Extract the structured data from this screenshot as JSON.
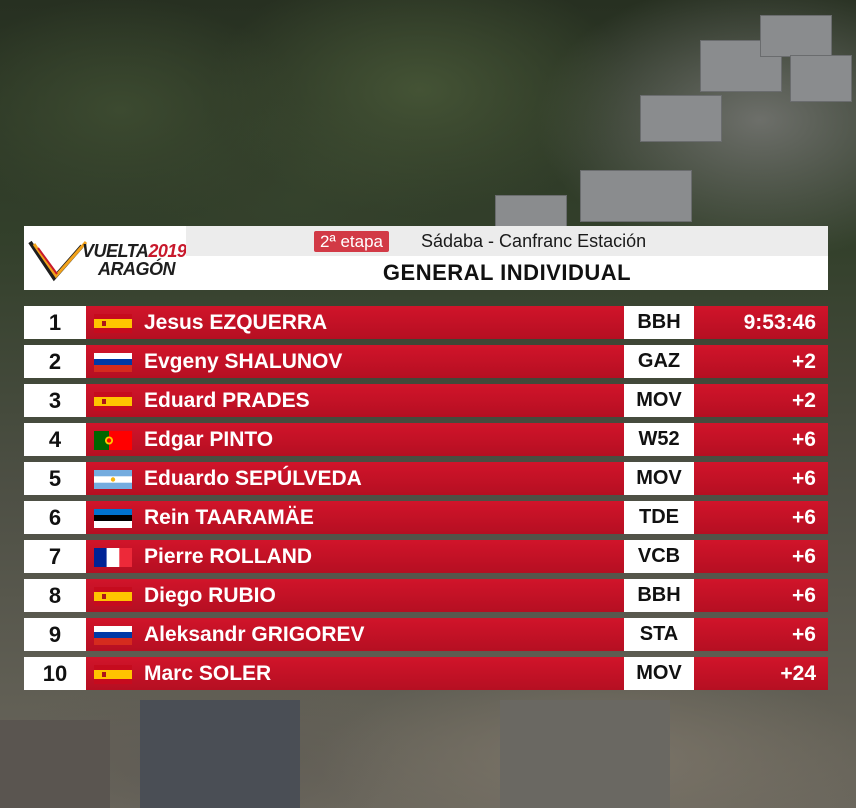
{
  "event": {
    "logo_line1": "VUELTA",
    "logo_year": "2019",
    "logo_line2": "ARAGÓN",
    "stage_badge": "2ª etapa",
    "stage_route": "Sádaba - Canfranc Estación",
    "classification_title": "GENERAL INDIVIDUAL"
  },
  "colors": {
    "row_red": "#c8192c",
    "badge_red": "#d23a46",
    "panel_white": "#ffffff"
  },
  "standings": [
    {
      "position": "1",
      "flag": "spain-flag",
      "rider": "Jesus EZQUERRA",
      "team": "BBH",
      "time": "9:53:46"
    },
    {
      "position": "2",
      "flag": "russia-flag",
      "rider": "Evgeny SHALUNOV",
      "team": "GAZ",
      "time": "+2"
    },
    {
      "position": "3",
      "flag": "spain-flag",
      "rider": "Eduard PRADES",
      "team": "MOV",
      "time": "+2"
    },
    {
      "position": "4",
      "flag": "portugal-flag",
      "rider": "Edgar PINTO",
      "team": "W52",
      "time": "+6"
    },
    {
      "position": "5",
      "flag": "argentina-flag",
      "rider": "Eduardo SEPÚLVEDA",
      "team": "MOV",
      "time": "+6"
    },
    {
      "position": "6",
      "flag": "estonia-flag",
      "rider": "Rein TAARAMÄE",
      "team": "TDE",
      "time": "+6"
    },
    {
      "position": "7",
      "flag": "france-flag",
      "rider": "Pierre ROLLAND",
      "team": "VCB",
      "time": "+6"
    },
    {
      "position": "8",
      "flag": "spain-flag",
      "rider": "Diego RUBIO",
      "team": "BBH",
      "time": "+6"
    },
    {
      "position": "9",
      "flag": "russia-flag",
      "rider": "Aleksandr GRIGOREV",
      "team": "STA",
      "time": "+6"
    },
    {
      "position": "10",
      "flag": "spain-flag",
      "rider": "Marc SOLER",
      "team": "MOV",
      "time": "+24"
    }
  ]
}
